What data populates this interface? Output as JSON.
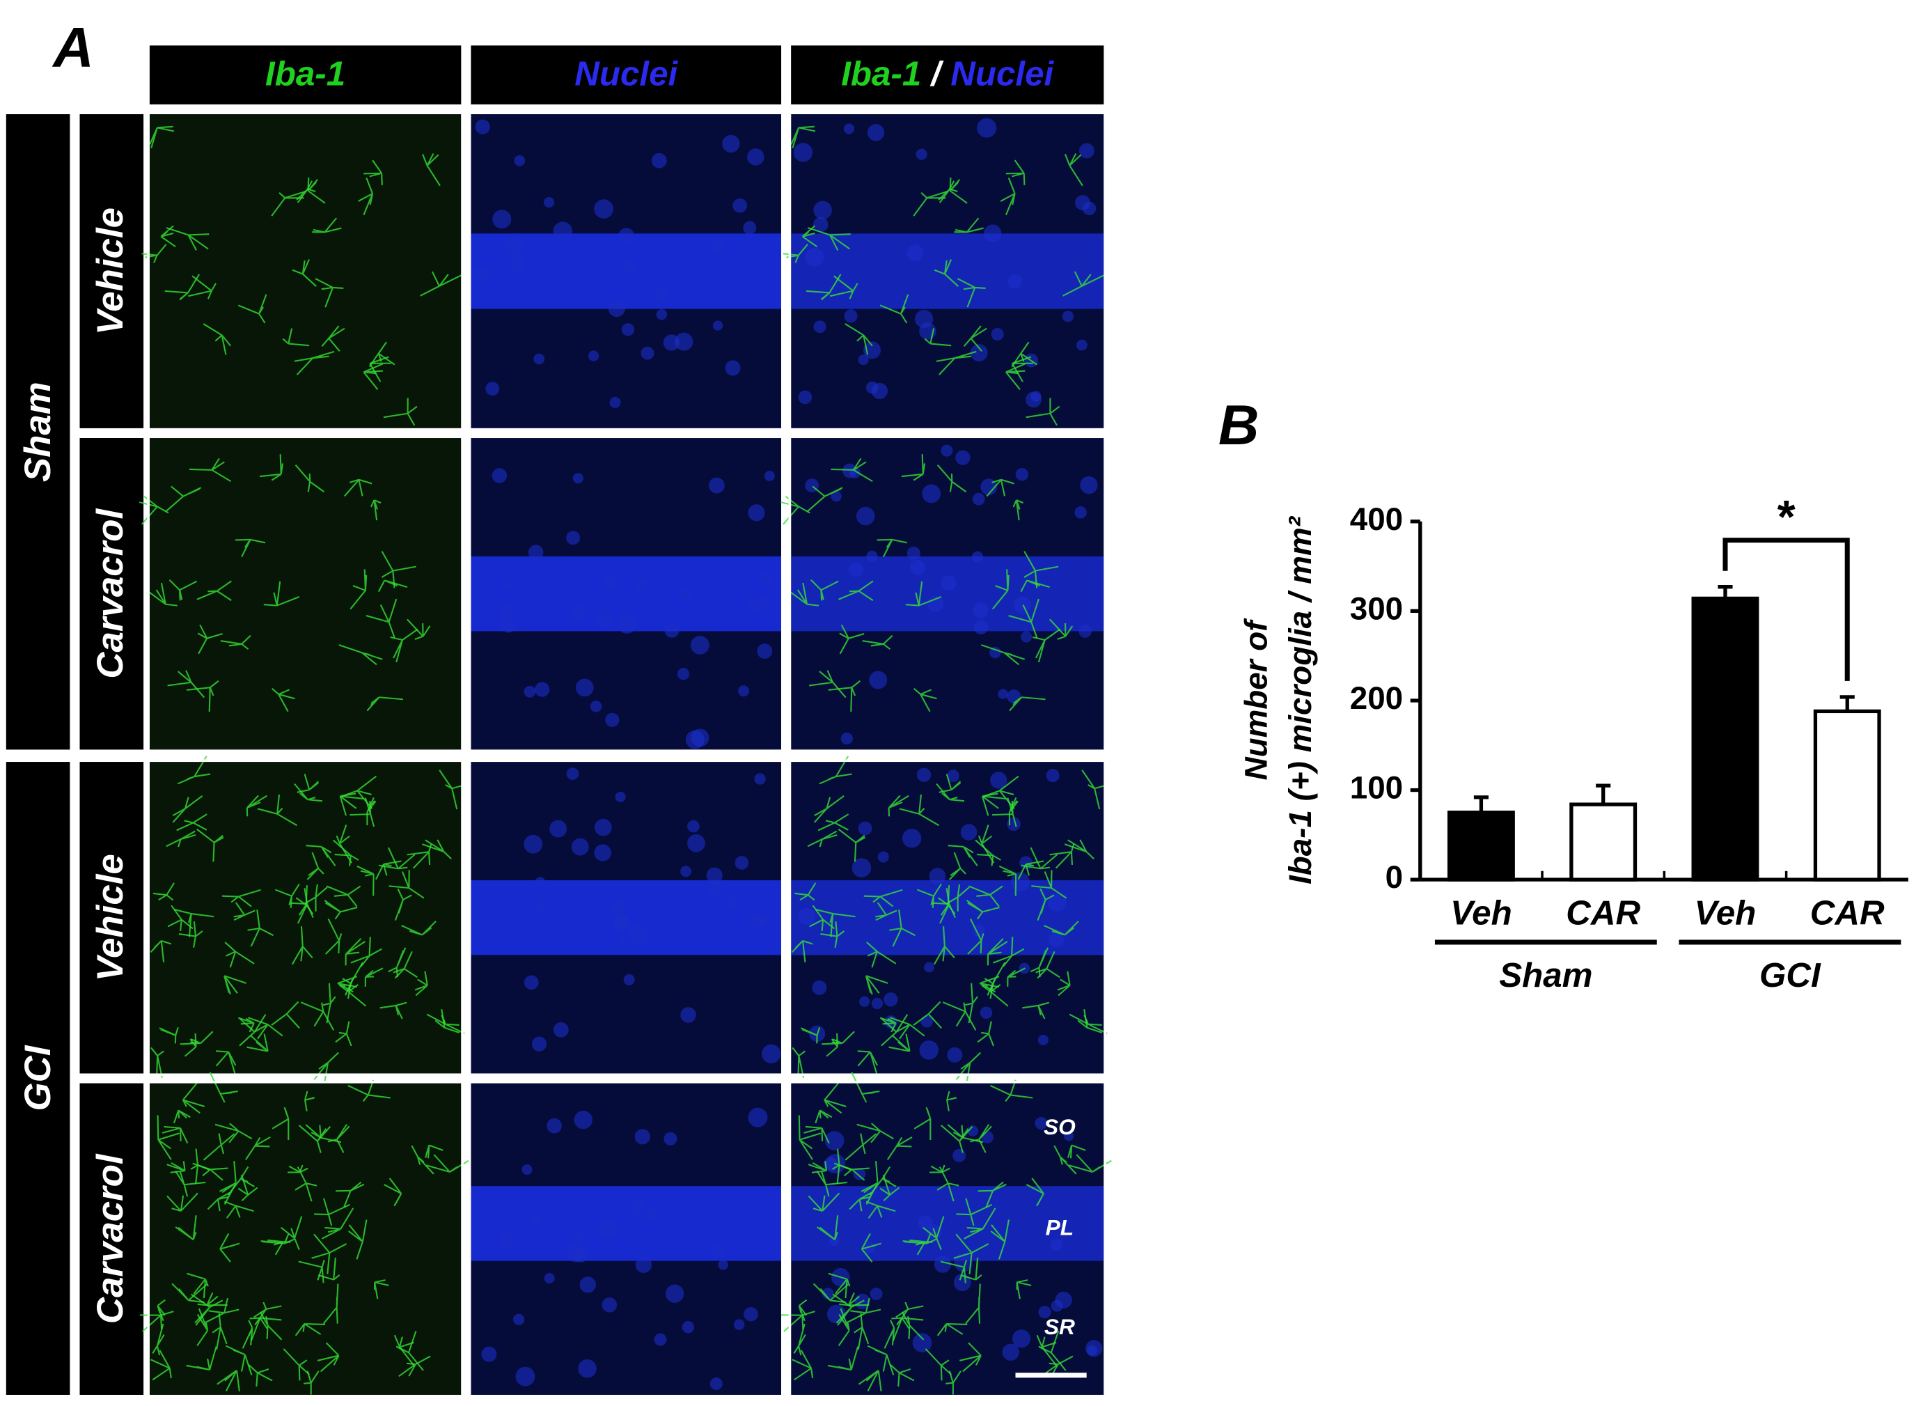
{
  "panel_a": {
    "label": "A",
    "columns": [
      {
        "parts": [
          "Iba-1"
        ],
        "colors": [
          "#1fd21f"
        ]
      },
      {
        "parts": [
          "Nuclei"
        ],
        "colors": [
          "#2a2af0"
        ]
      },
      {
        "parts": [
          "Iba-1",
          "/",
          "Nuclei"
        ],
        "colors": [
          "#1fd21f",
          "#ffffff",
          "#2a2af0"
        ]
      }
    ],
    "groups": [
      {
        "name": "Sham",
        "rows": [
          "Vehicle",
          "Carvacrol"
        ]
      },
      {
        "name": "GCI",
        "rows": [
          "Vehicle",
          "Carvacrol"
        ]
      }
    ],
    "annotations": [
      "SO",
      "PL",
      "SR"
    ]
  },
  "chart_data": {
    "type": "bar",
    "label": "B",
    "ylabel": [
      "Number of",
      "Iba-1 (+) microglia / mm²"
    ],
    "categories": [
      "Veh",
      "CAR",
      "Veh",
      "CAR"
    ],
    "groups": [
      {
        "name": "Sham",
        "size": 2
      },
      {
        "name": "GCI",
        "size": 2
      }
    ],
    "values": [
      75,
      84,
      314,
      188
    ],
    "errors": [
      17,
      21,
      13,
      16
    ],
    "colors": [
      "#000000",
      "#ffffff",
      "#000000",
      "#ffffff"
    ],
    "ylim": [
      0,
      400
    ],
    "yticks": [
      0,
      100,
      200,
      300,
      400
    ],
    "significance": [
      {
        "from": 2,
        "to": 3,
        "label": "*"
      }
    ]
  }
}
